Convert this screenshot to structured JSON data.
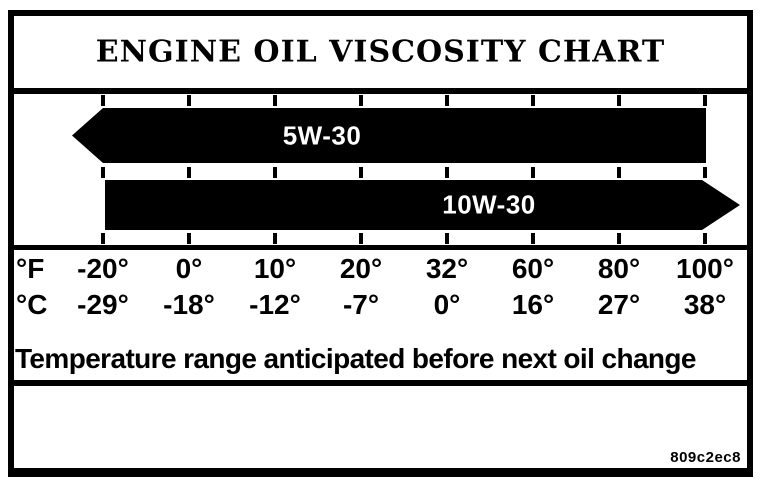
{
  "title": "ENGINE OIL VISCOSITY CHART",
  "caption": "Temperature range anticipated before next oil change",
  "figure_code": "809c2ec8",
  "chart_data": {
    "type": "bar",
    "subtype": "horizontal-range-arrows",
    "title": "ENGINE OIL VISCOSITY CHART",
    "caption": "Temperature range anticipated before next oil change",
    "grid": "dashed vertical tick marks at each temperature position, above and below each bar",
    "legend_position": "none",
    "axes": {
      "fahrenheit": {
        "unit": "°F",
        "tick_labels": [
          "-20°",
          "0°",
          "10°",
          "20°",
          "32°",
          "60°",
          "80°",
          "100°"
        ],
        "values": [
          -20,
          0,
          10,
          20,
          32,
          60,
          80,
          100
        ]
      },
      "celsius": {
        "unit": "°C",
        "tick_labels": [
          "-29°",
          "-18°",
          "-12°",
          "-7°",
          "0°",
          "16°",
          "27°",
          "38°"
        ],
        "values": [
          -29,
          -18,
          -12,
          -7,
          0,
          16,
          27,
          38
        ]
      }
    },
    "series": [
      {
        "name": "5W-30",
        "start_f": null,
        "end_f": 100,
        "arrow_points": "left",
        "range_note": "extends leftward below -20°F (-29°C), ends at 100°F (38°C)",
        "bar_color": "#000000",
        "label_color": "#ffffff"
      },
      {
        "name": "10W-30",
        "start_f": -20,
        "end_f": null,
        "arrow_points": "right",
        "range_note": "starts at -20°F (-29°C), extends rightward above 100°F (38°C)",
        "bar_color": "#000000",
        "label_color": "#ffffff"
      }
    ],
    "colors": {
      "background": "#ffffff",
      "border": "#000000",
      "bar": "#000000",
      "bar_label": "#ffffff"
    }
  }
}
